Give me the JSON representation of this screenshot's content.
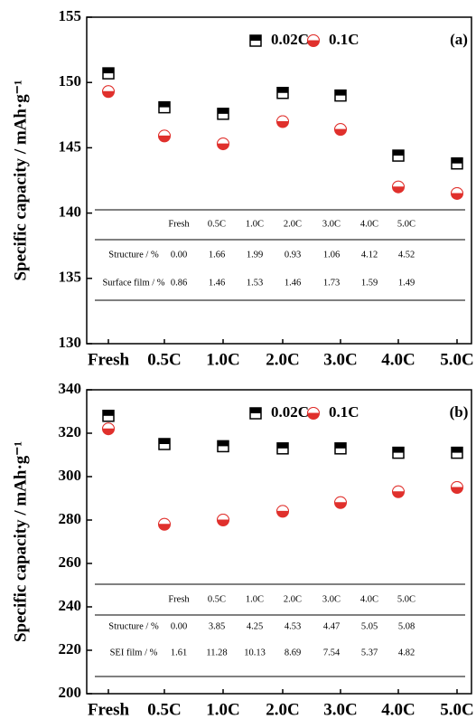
{
  "chart_data": [
    {
      "type": "scatter",
      "panel_label": "(a)",
      "ylabel": "Specific capacity / mAh·g⁻¹",
      "categories": [
        "Fresh",
        "0.5C",
        "1.0C",
        "2.0C",
        "3.0C",
        "4.0C",
        "5.0C"
      ],
      "series": [
        {
          "name": "0.02C",
          "color": "#000000",
          "marker": "square",
          "values": [
            150.7,
            148.1,
            147.6,
            149.2,
            149.0,
            144.4,
            143.8
          ]
        },
        {
          "name": "0.1C",
          "color": "#e0302c",
          "marker": "circle",
          "values": [
            149.3,
            145.9,
            145.3,
            147.0,
            146.4,
            142.0,
            141.5
          ]
        }
      ],
      "ylim": [
        130,
        155
      ],
      "yticks": [
        130,
        135,
        140,
        145,
        150,
        155
      ],
      "table": {
        "header": [
          "Fresh",
          "0.5C",
          "1.0C",
          "2.0C",
          "3.0C",
          "4.0C",
          "5.0C"
        ],
        "rows": [
          {
            "label": "Structure / %",
            "values": [
              "0.00",
              "1.66",
              "1.99",
              "0.93",
              "1.06",
              "4.12",
              "4.52"
            ]
          },
          {
            "label": "Surface film / %",
            "values": [
              "0.86",
              "1.46",
              "1.53",
              "1.46",
              "1.73",
              "1.59",
              "1.49"
            ]
          }
        ]
      }
    },
    {
      "type": "scatter",
      "panel_label": "(b)",
      "ylabel": "Specific capacity / mAh·g⁻¹",
      "categories": [
        "Fresh",
        "0.5C",
        "1.0C",
        "2.0C",
        "3.0C",
        "4.0C",
        "5.0C"
      ],
      "series": [
        {
          "name": "0.02C",
          "color": "#000000",
          "marker": "square",
          "values": [
            328,
            315,
            314,
            313,
            313,
            311,
            311
          ]
        },
        {
          "name": "0.1C",
          "color": "#e0302c",
          "marker": "circle",
          "values": [
            322,
            278,
            280,
            284,
            288,
            293,
            295
          ]
        }
      ],
      "ylim": [
        200,
        340
      ],
      "yticks": [
        200,
        220,
        240,
        260,
        280,
        300,
        320,
        340
      ],
      "table": {
        "header": [
          "Fresh",
          "0.5C",
          "1.0C",
          "2.0C",
          "3.0C",
          "4.0C",
          "5.0C"
        ],
        "rows": [
          {
            "label": "Structure / %",
            "values": [
              "0.00",
              "3.85",
              "4.25",
              "4.53",
              "4.47",
              "5.05",
              "5.08"
            ]
          },
          {
            "label": "SEI film / %",
            "values": [
              "1.61",
              "11.28",
              "10.13",
              "8.69",
              "7.54",
              "5.37",
              "4.82"
            ]
          }
        ]
      }
    }
  ]
}
